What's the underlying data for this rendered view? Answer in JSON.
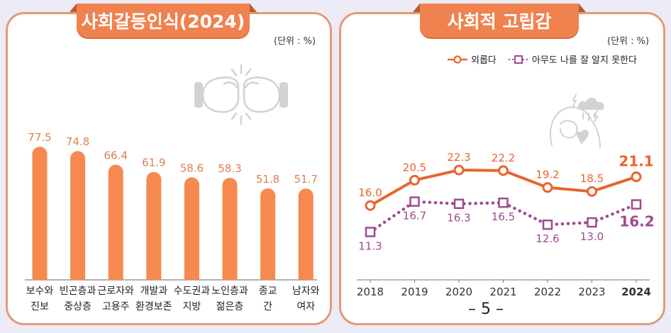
{
  "page_number": "– 5 –",
  "colors": {
    "bar": "#f5894f",
    "bar_label": "#e07f4e",
    "panel_border": "#e59a74",
    "title_tab": "#f0824f",
    "line_lonely": "#e8652e",
    "line_no_one": "#a04a8f",
    "icon": "#cfcfcf"
  },
  "left_panel": {
    "title": "사회갈등인식(2024)",
    "unit": "(단위 : %)",
    "illustration_icon": "boxing-gloves-icon"
  },
  "right_panel": {
    "title": "사회적 고립감",
    "unit": "(단위 : %)",
    "illustration_icon": "sad-person-heartbreak-icon",
    "legend": [
      {
        "label": "외롭다",
        "marker": "circle"
      },
      {
        "label": "아무도 나를 잘 알지 못한다",
        "marker": "square"
      }
    ]
  },
  "chart_data": [
    {
      "type": "bar",
      "title": "사회갈등인식(2024)",
      "unit": "(단위 : %)",
      "xlabel": "",
      "ylabel": "",
      "grid": false,
      "categories": [
        [
          "보수와",
          "진보"
        ],
        [
          "빈곤층과",
          "중상층"
        ],
        [
          "근로자와",
          "고용주"
        ],
        [
          "개발과",
          "환경보존"
        ],
        [
          "수도권과",
          "지방"
        ],
        [
          "노인층과",
          "젊은층"
        ],
        [
          "종교",
          "간"
        ],
        [
          "남자와",
          "여자"
        ]
      ],
      "values": [
        77.5,
        74.8,
        66.4,
        61.9,
        58.6,
        58.3,
        51.8,
        51.7
      ],
      "value_labels": [
        "77.5",
        "74.8",
        "66.4",
        "61.9",
        "58.6",
        "58.3",
        "51.8",
        "51.7"
      ]
    },
    {
      "type": "line",
      "title": "사회적 고립감",
      "unit": "(단위 : %)",
      "xlabel": "",
      "ylabel": "",
      "grid": false,
      "legend_position": "top-right",
      "x": [
        "2018",
        "2019",
        "2020",
        "2021",
        "2022",
        "2023",
        "2024"
      ],
      "series": [
        {
          "name": "외롭다",
          "marker": "circle",
          "style": "solid",
          "values": [
            16.0,
            20.5,
            22.3,
            22.2,
            19.2,
            18.5,
            21.1
          ],
          "labels": [
            "16.0",
            "20.5",
            "22.3",
            "22.2",
            "19.2",
            "18.5",
            "21.1"
          ]
        },
        {
          "name": "아무도 나를 잘 알지 못한다",
          "marker": "square",
          "style": "dotted",
          "values": [
            11.3,
            16.7,
            16.3,
            16.5,
            12.6,
            13.0,
            16.2
          ],
          "labels": [
            "11.3",
            "16.7",
            "16.3",
            "16.5",
            "12.6",
            "13.0",
            "16.2"
          ]
        }
      ]
    }
  ]
}
